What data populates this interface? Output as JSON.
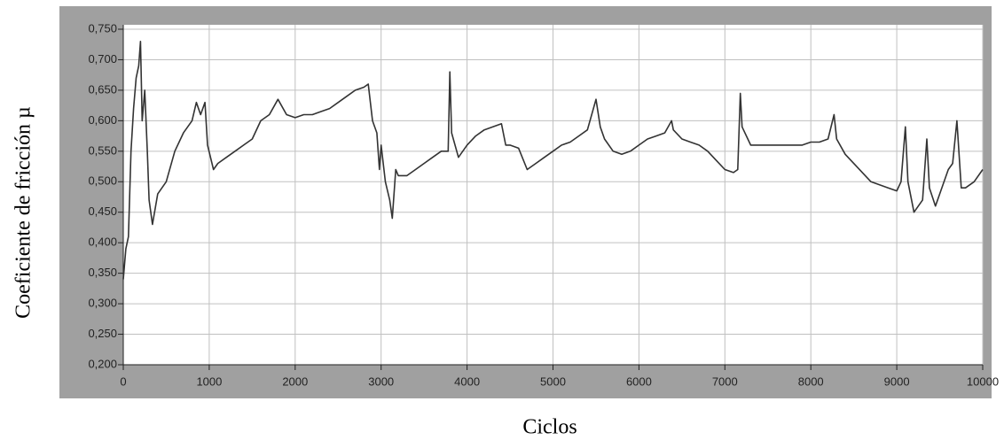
{
  "chart_data": {
    "type": "line",
    "y_label": "Coeficiente de fricción µ",
    "x_label": "Ciclos",
    "x": [
      0,
      30,
      60,
      90,
      120,
      150,
      180,
      200,
      220,
      250,
      280,
      300,
      340,
      400,
      500,
      600,
      700,
      800,
      850,
      900,
      950,
      980,
      1050,
      1100,
      1200,
      1300,
      1400,
      1500,
      1600,
      1700,
      1800,
      1900,
      2000,
      2100,
      2200,
      2300,
      2400,
      2500,
      2600,
      2700,
      2800,
      2850,
      2900,
      2950,
      2980,
      3000,
      3050,
      3100,
      3130,
      3170,
      3200,
      3300,
      3400,
      3500,
      3600,
      3700,
      3780,
      3800,
      3820,
      3900,
      4000,
      4100,
      4200,
      4300,
      4400,
      4450,
      4500,
      4600,
      4700,
      4800,
      4900,
      5000,
      5100,
      5200,
      5300,
      5400,
      5500,
      5550,
      5600,
      5700,
      5800,
      5900,
      6000,
      6100,
      6200,
      6300,
      6380,
      6400,
      6500,
      6600,
      6700,
      6800,
      6900,
      7000,
      7100,
      7150,
      7180,
      7200,
      7300,
      7400,
      7500,
      7600,
      7700,
      7800,
      7900,
      8000,
      8100,
      8200,
      8270,
      8300,
      8400,
      8500,
      8600,
      8700,
      8800,
      8900,
      9000,
      9050,
      9100,
      9130,
      9200,
      9300,
      9350,
      9380,
      9450,
      9500,
      9600,
      9650,
      9700,
      9750,
      9800,
      9900,
      10000
    ],
    "series": [
      {
        "color": "#333333",
        "values": [
          0.34,
          0.39,
          0.41,
          0.55,
          0.62,
          0.67,
          0.69,
          0.73,
          0.6,
          0.65,
          0.55,
          0.47,
          0.43,
          0.48,
          0.5,
          0.55,
          0.58,
          0.6,
          0.63,
          0.61,
          0.63,
          0.56,
          0.52,
          0.53,
          0.54,
          0.55,
          0.56,
          0.57,
          0.6,
          0.61,
          0.635,
          0.61,
          0.605,
          0.61,
          0.61,
          0.615,
          0.62,
          0.63,
          0.64,
          0.65,
          0.655,
          0.66,
          0.6,
          0.58,
          0.52,
          0.56,
          0.5,
          0.47,
          0.44,
          0.52,
          0.51,
          0.51,
          0.52,
          0.53,
          0.54,
          0.55,
          0.55,
          0.68,
          0.58,
          0.54,
          0.56,
          0.575,
          0.585,
          0.59,
          0.595,
          0.56,
          0.56,
          0.555,
          0.52,
          0.53,
          0.54,
          0.55,
          0.56,
          0.565,
          0.575,
          0.585,
          0.635,
          0.59,
          0.57,
          0.55,
          0.545,
          0.55,
          0.56,
          0.57,
          0.575,
          0.58,
          0.6,
          0.585,
          0.57,
          0.565,
          0.56,
          0.55,
          0.535,
          0.52,
          0.515,
          0.52,
          0.645,
          0.59,
          0.56,
          0.56,
          0.56,
          0.56,
          0.56,
          0.56,
          0.56,
          0.565,
          0.565,
          0.57,
          0.61,
          0.57,
          0.545,
          0.53,
          0.515,
          0.5,
          0.495,
          0.49,
          0.485,
          0.5,
          0.59,
          0.5,
          0.45,
          0.47,
          0.57,
          0.49,
          0.46,
          0.48,
          0.52,
          0.53,
          0.6,
          0.49,
          0.49,
          0.5,
          0.52
        ]
      }
    ],
    "xlim": [
      0,
      10000
    ],
    "xticks": [
      0,
      1000,
      2000,
      3000,
      4000,
      5000,
      6000,
      7000,
      8000,
      9000,
      10000
    ],
    "ylim": [
      0.2,
      0.75
    ],
    "yticks": [
      {
        "value": 0.2,
        "label": "0,200"
      },
      {
        "value": 0.25,
        "label": "0,250"
      },
      {
        "value": 0.3,
        "label": "0,300"
      },
      {
        "value": 0.35,
        "label": "0,350"
      },
      {
        "value": 0.4,
        "label": "0,400"
      },
      {
        "value": 0.45,
        "label": "0,450"
      },
      {
        "value": 0.5,
        "label": "0,500"
      },
      {
        "value": 0.55,
        "label": "0,550"
      },
      {
        "value": 0.6,
        "label": "0,600"
      },
      {
        "value": 0.65,
        "label": "0,650"
      },
      {
        "value": 0.7,
        "label": "0,700"
      },
      {
        "value": 0.75,
        "label": "0,750"
      }
    ],
    "grid": true
  }
}
